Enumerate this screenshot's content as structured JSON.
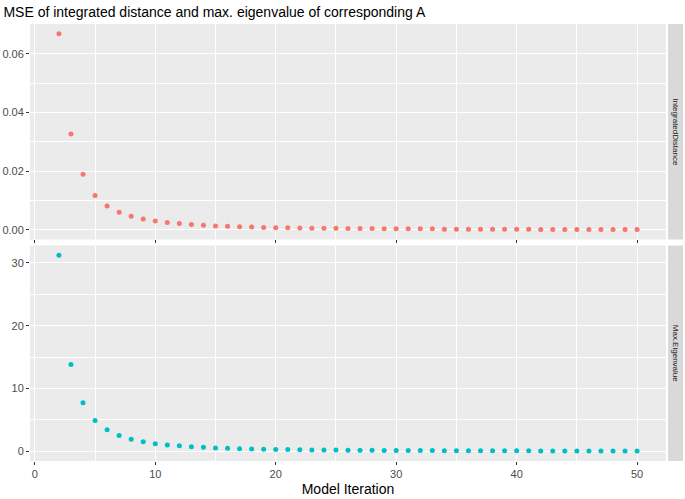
{
  "chart_data": {
    "type": "scatter",
    "title": "MSE of integrated distance and max. eigenvalue of corresponding A",
    "x_label": "Model Iteration",
    "xlim": [
      -0.4,
      52.4
    ],
    "xticks": [
      0,
      10,
      20,
      30,
      40,
      50
    ],
    "grid": true,
    "marker": "circle",
    "x": [
      2,
      3,
      4,
      5,
      6,
      7,
      8,
      9,
      10,
      11,
      12,
      13,
      14,
      15,
      16,
      17,
      18,
      19,
      20,
      21,
      22,
      23,
      24,
      25,
      26,
      27,
      28,
      29,
      30,
      31,
      32,
      33,
      34,
      35,
      36,
      37,
      38,
      39,
      40,
      41,
      42,
      43,
      44,
      45,
      46,
      47,
      48,
      49,
      50
    ],
    "series": [
      {
        "name": "IntegratedDistance",
        "color": "#F8766D",
        "ylim": [
          -0.0033,
          0.0701
        ],
        "yticks": [
          {
            "value": 0,
            "label": "0.00"
          },
          {
            "value": 0.02,
            "label": "0.02"
          },
          {
            "value": 0.04,
            "label": "0.04"
          },
          {
            "value": 0.06,
            "label": "0.06"
          }
        ],
        "values": [
          0.0668,
          0.0326,
          0.0189,
          0.0117,
          0.0081,
          0.006,
          0.0046,
          0.0037,
          0.003,
          0.0025,
          0.0021,
          0.0018,
          0.0015,
          0.0013,
          0.0012,
          0.001,
          0.0009,
          0.0008,
          0.0007,
          0.0007,
          0.0006,
          0.0005,
          0.0005,
          0.0005,
          0.0004,
          0.0004,
          0.0004,
          0.0003,
          0.0003,
          0.0003,
          0.0003,
          0.0003,
          0.0002,
          0.0002,
          0.0002,
          0.0002,
          0.0002,
          0.0002,
          0.0002,
          0.0002,
          0.0001,
          0.0001,
          0.0001,
          0.0001,
          0.0001,
          0.0001,
          0.0001,
          0.0001,
          0.0001
        ]
      },
      {
        "name": "Max.Eigenvalue",
        "color": "#00BFC4",
        "ylim": [
          -1.56,
          32.76
        ],
        "yticks": [
          0,
          10,
          20,
          30
        ],
        "values": [
          31.2,
          13.8,
          7.7,
          4.9,
          3.4,
          2.5,
          1.9,
          1.5,
          1.2,
          1.0,
          0.85,
          0.72,
          0.62,
          0.53,
          0.46,
          0.41,
          0.36,
          0.32,
          0.29,
          0.26,
          0.24,
          0.21,
          0.19,
          0.18,
          0.16,
          0.15,
          0.14,
          0.13,
          0.12,
          0.11,
          0.1,
          0.1,
          0.09,
          0.08,
          0.08,
          0.07,
          0.07,
          0.06,
          0.06,
          0.06,
          0.05,
          0.05,
          0.05,
          0.05,
          0.04,
          0.04,
          0.04,
          0.04,
          0.03
        ]
      }
    ]
  }
}
